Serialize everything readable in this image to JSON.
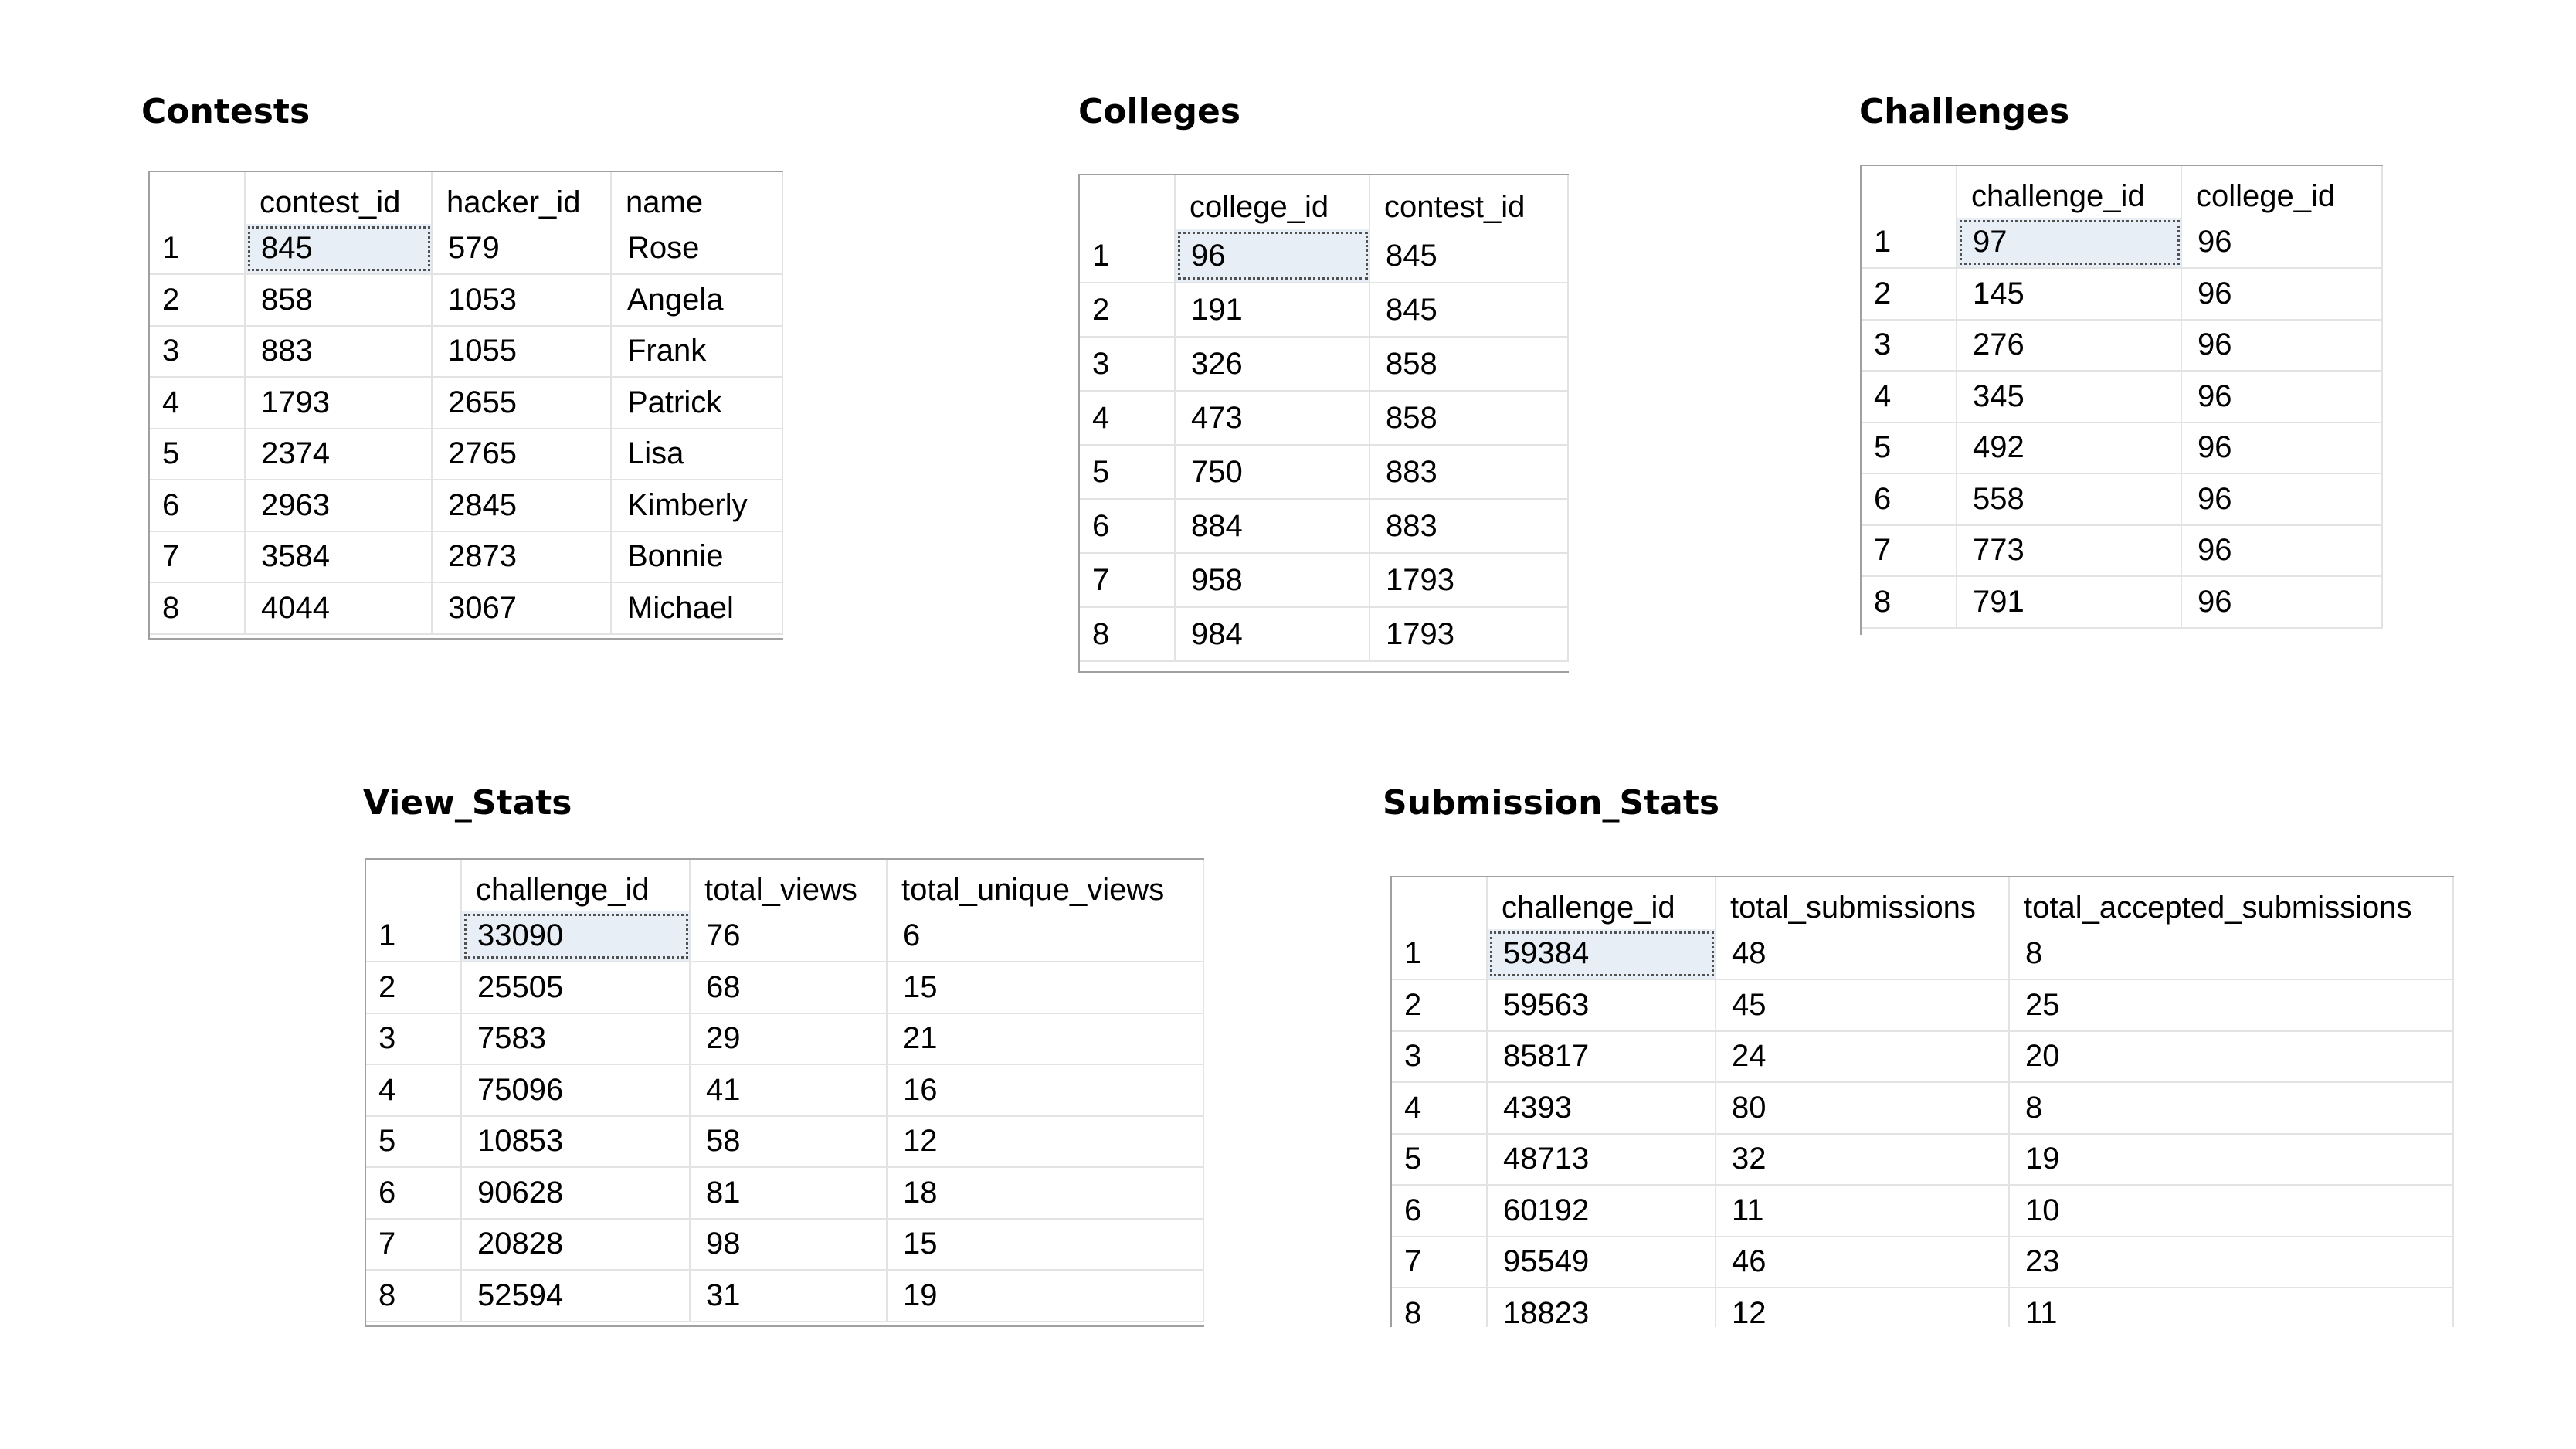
{
  "contests": {
    "title": "Contests",
    "columns": [
      "contest_id",
      "hacker_id",
      "name"
    ],
    "rows": [
      [
        "1",
        "845",
        "579",
        "Rose"
      ],
      [
        "2",
        "858",
        "1053",
        "Angela"
      ],
      [
        "3",
        "883",
        "1055",
        "Frank"
      ],
      [
        "4",
        "1793",
        "2655",
        "Patrick"
      ],
      [
        "5",
        "2374",
        "2765",
        "Lisa"
      ],
      [
        "6",
        "2963",
        "2845",
        "Kimberly"
      ],
      [
        "7",
        "3584",
        "2873",
        "Bonnie"
      ],
      [
        "8",
        "4044",
        "3067",
        "Michael"
      ]
    ]
  },
  "colleges": {
    "title": "Colleges",
    "columns": [
      "college_id",
      "contest_id"
    ],
    "rows": [
      [
        "1",
        "96",
        "845"
      ],
      [
        "2",
        "191",
        "845"
      ],
      [
        "3",
        "326",
        "858"
      ],
      [
        "4",
        "473",
        "858"
      ],
      [
        "5",
        "750",
        "883"
      ],
      [
        "6",
        "884",
        "883"
      ],
      [
        "7",
        "958",
        "1793"
      ],
      [
        "8",
        "984",
        "1793"
      ]
    ]
  },
  "challenges": {
    "title": "Challenges",
    "columns": [
      "challenge_id",
      "college_id"
    ],
    "rows": [
      [
        "1",
        "97",
        "96"
      ],
      [
        "2",
        "145",
        "96"
      ],
      [
        "3",
        "276",
        "96"
      ],
      [
        "4",
        "345",
        "96"
      ],
      [
        "5",
        "492",
        "96"
      ],
      [
        "6",
        "558",
        "96"
      ],
      [
        "7",
        "773",
        "96"
      ],
      [
        "8",
        "791",
        "96"
      ]
    ]
  },
  "view_stats": {
    "title": "View_Stats",
    "columns": [
      "challenge_id",
      "total_views",
      "total_unique_views"
    ],
    "rows": [
      [
        "1",
        "33090",
        "76",
        "6"
      ],
      [
        "2",
        "25505",
        "68",
        "15"
      ],
      [
        "3",
        "7583",
        "29",
        "21"
      ],
      [
        "4",
        "75096",
        "41",
        "16"
      ],
      [
        "5",
        "10853",
        "58",
        "12"
      ],
      [
        "6",
        "90628",
        "81",
        "18"
      ],
      [
        "7",
        "20828",
        "98",
        "15"
      ],
      [
        "8",
        "52594",
        "31",
        "19"
      ]
    ]
  },
  "submission_stats": {
    "title": "Submission_Stats",
    "columns": [
      "challenge_id",
      "total_submissions",
      "total_accepted_submissions"
    ],
    "rows": [
      [
        "1",
        "59384",
        "48",
        "8"
      ],
      [
        "2",
        "59563",
        "45",
        "25"
      ],
      [
        "3",
        "85817",
        "24",
        "20"
      ],
      [
        "4",
        "4393",
        "80",
        "8"
      ],
      [
        "5",
        "48713",
        "32",
        "19"
      ],
      [
        "6",
        "60192",
        "11",
        "10"
      ],
      [
        "7",
        "95549",
        "46",
        "23"
      ],
      [
        "8",
        "18823",
        "12",
        "11"
      ]
    ]
  }
}
